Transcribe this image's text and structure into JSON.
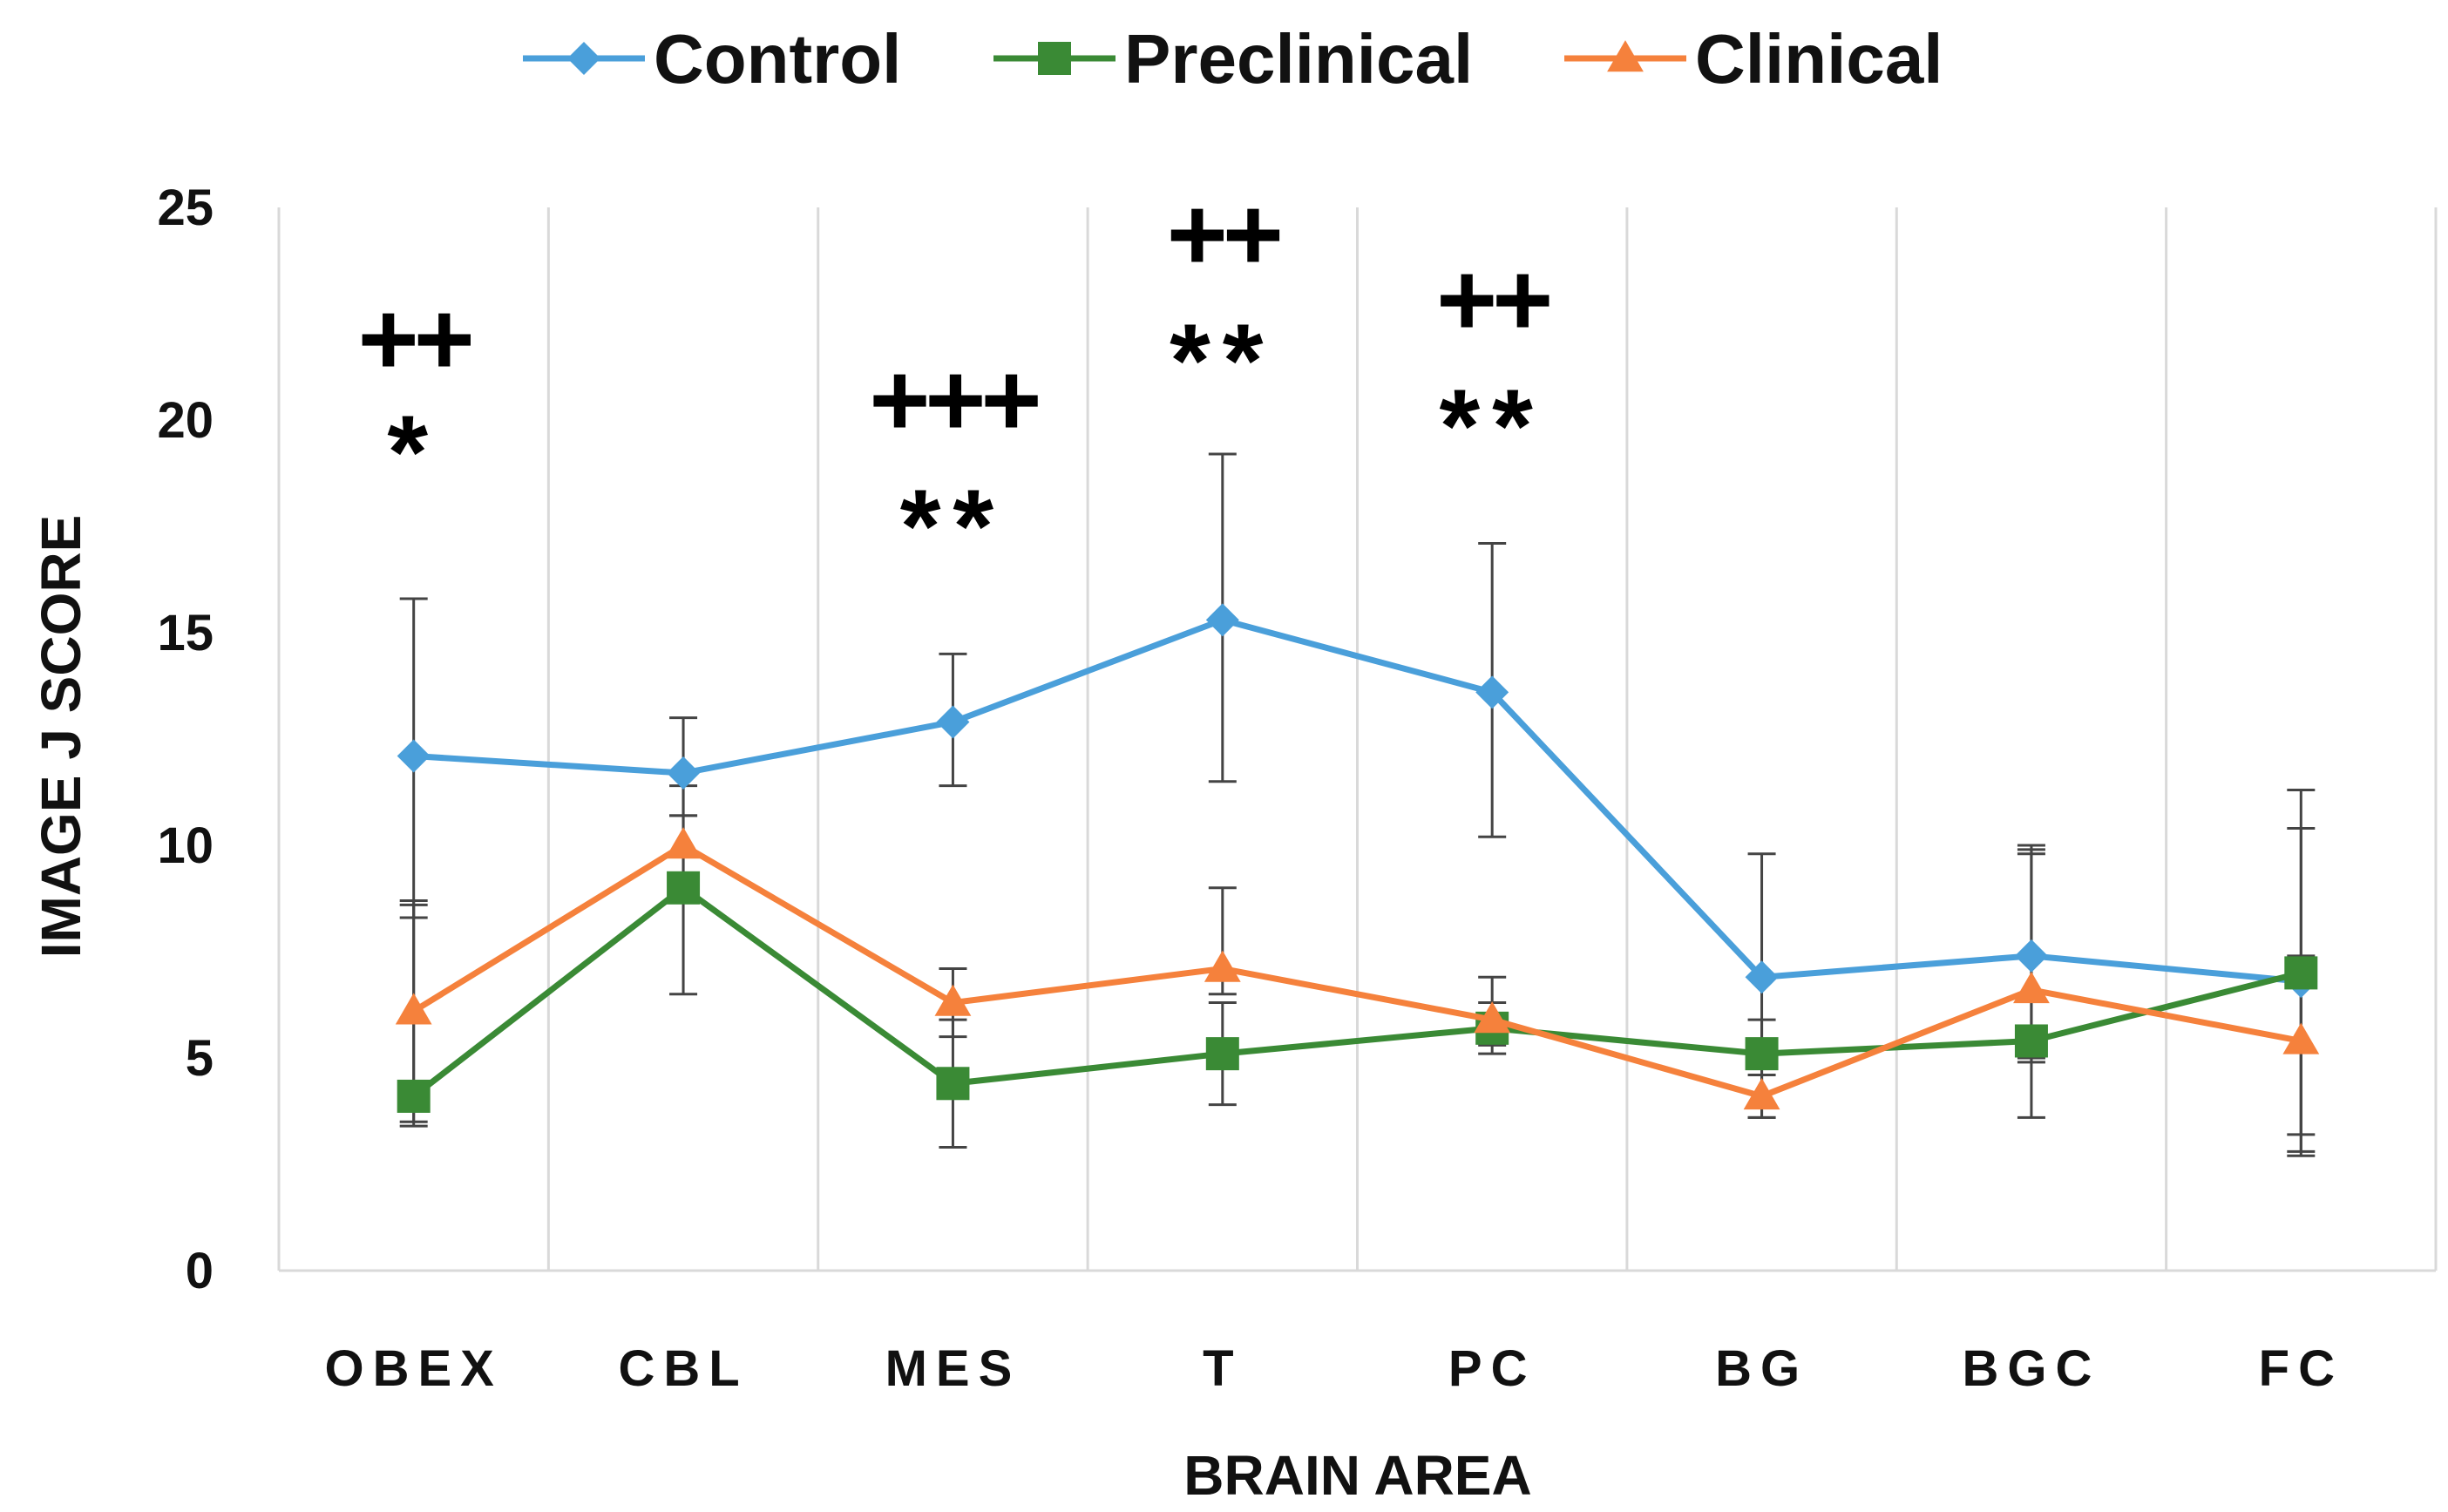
{
  "chart_data": {
    "type": "line",
    "categories": [
      "OBEX",
      "CBL",
      "MES",
      "T",
      "PC",
      "BG",
      "BGC",
      "FC"
    ],
    "xlabel": "BRAIN AREA",
    "ylabel": "IMAGE J SCORE",
    "ylim": [
      0,
      25
    ],
    "yticks": [
      "0",
      "5",
      "10",
      "15",
      "20",
      "25"
    ],
    "grid": "vertical",
    "legend_position": "top",
    "series": [
      {
        "name": "Control",
        "color": "#4A9FDA",
        "marker": "diamond",
        "values": [
          12.1,
          11.7,
          12.9,
          15.3,
          13.6,
          6.9,
          7.4,
          6.8
        ],
        "err_low": [
          8.3,
          10.7,
          11.4,
          11.5,
          10.2,
          3.9,
          4.9,
          2.8
        ],
        "err_high": [
          15.8,
          13.0,
          14.5,
          19.2,
          17.1,
          9.8,
          10.0,
          10.4
        ]
      },
      {
        "name": "Preclinical",
        "color": "#3A8A35",
        "marker": "square",
        "values": [
          4.1,
          9.0,
          4.4,
          5.1,
          5.7,
          5.1,
          5.4,
          7.0
        ],
        "err_low": [
          3.4,
          6.5,
          2.9,
          3.9,
          5.1,
          3.6,
          3.6,
          2.7
        ],
        "err_high": [
          8.7,
          11.4,
          5.9,
          6.3,
          6.3,
          5.9,
          9.8,
          11.3
        ]
      },
      {
        "name": "Clinical",
        "color": "#F5813C",
        "marker": "triangle",
        "values": [
          6.1,
          10.0,
          6.3,
          7.1,
          5.9,
          4.1,
          6.6,
          5.4
        ],
        "err_low": [
          3.5,
          8.8,
          5.5,
          6.5,
          5.3,
          3.6,
          5.0,
          3.2
        ],
        "err_high": [
          8.6,
          10.7,
          7.1,
          9.0,
          6.9,
          4.6,
          9.9,
          7.4
        ]
      }
    ],
    "annotations": [
      {
        "category": "OBEX",
        "lines": [
          "++",
          "*"
        ]
      },
      {
        "category": "MES",
        "lines": [
          "+++",
          "**"
        ]
      },
      {
        "category": "T",
        "lines": [
          "++",
          "**"
        ]
      },
      {
        "category": "PC",
        "lines": [
          "++",
          "**"
        ]
      }
    ]
  }
}
